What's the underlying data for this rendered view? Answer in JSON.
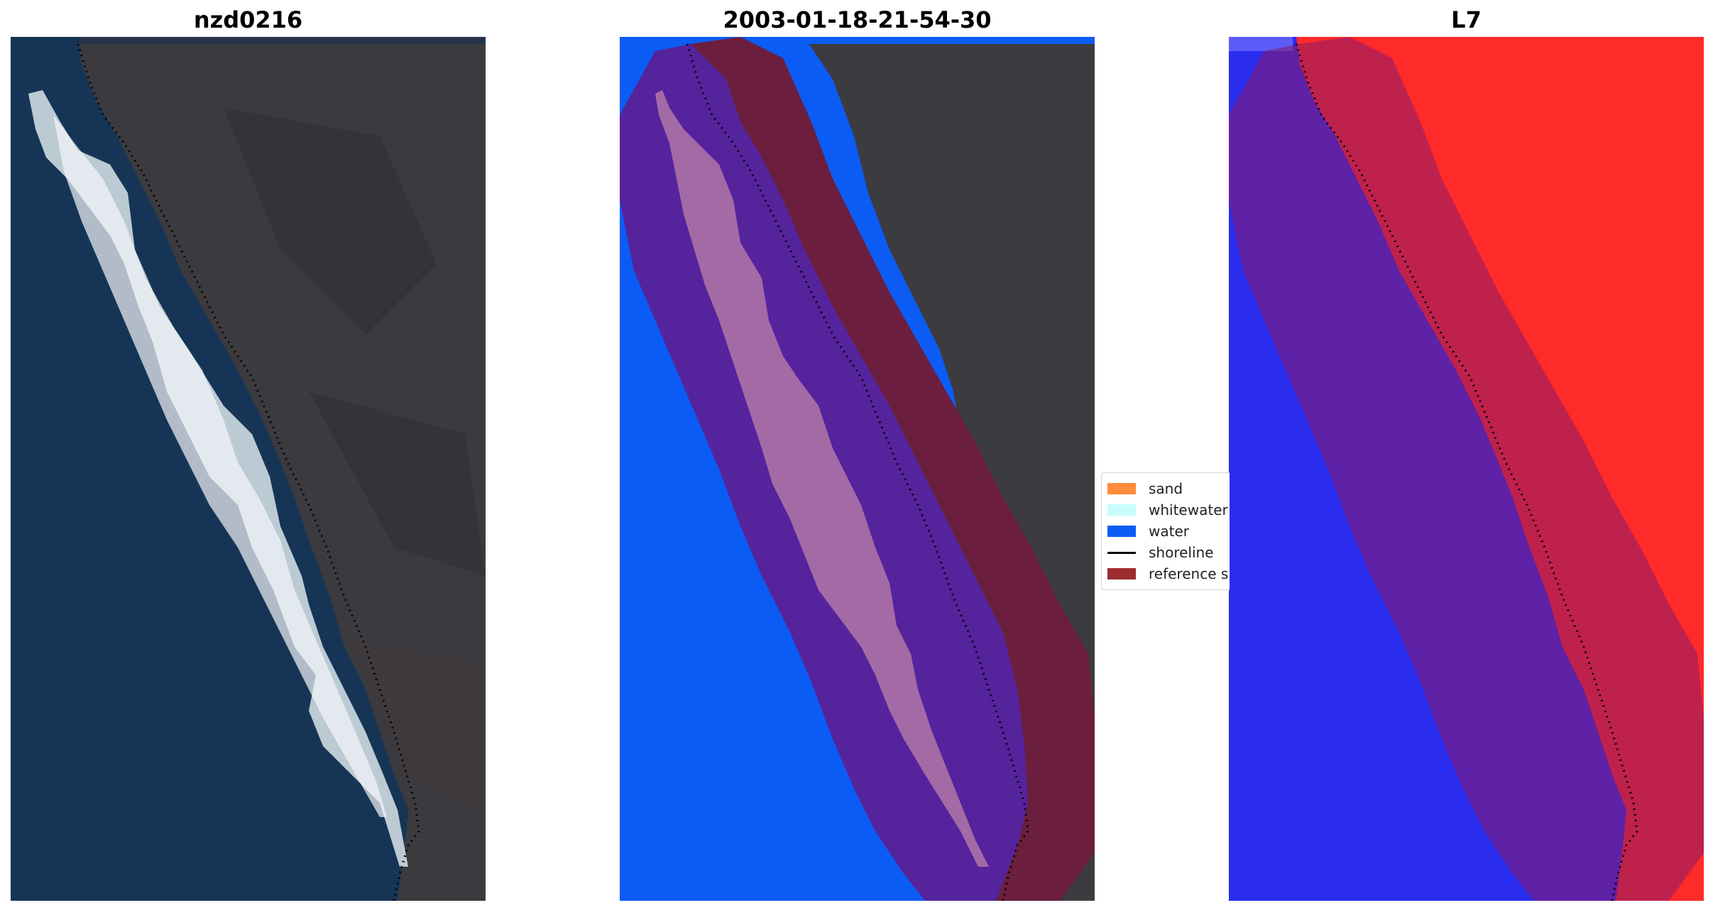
{
  "panels": [
    {
      "title": "nzd0216",
      "kind": "rgb-image"
    },
    {
      "title": "2003-01-18-21-54-30",
      "kind": "classified-image"
    },
    {
      "title": "L7",
      "kind": "index-image"
    }
  ],
  "legend": {
    "items": [
      {
        "label": "sand",
        "color": "#ff8c3a",
        "type": "patch"
      },
      {
        "label": "whitewater",
        "color": "#c8fcfc",
        "type": "patch"
      },
      {
        "label": "water",
        "color": "#0b5cf5",
        "type": "patch"
      },
      {
        "label": "shoreline",
        "color": "#000000",
        "type": "line"
      },
      {
        "label": "reference shoreline buffer",
        "color": "#9c2c2e",
        "type": "patch"
      }
    ]
  },
  "colors": {
    "ocean": "#153555",
    "land": "#3c3a3d",
    "surf": "#e6eef3",
    "water_class": "#0b5cf5",
    "buffer_blend_water": "#55239c",
    "buffer_blend_land": "#6b1e3e",
    "whitewater_in_buffer": "#a46aa6",
    "index_high": "#ff2a2a",
    "index_low": "#2a2cee"
  }
}
